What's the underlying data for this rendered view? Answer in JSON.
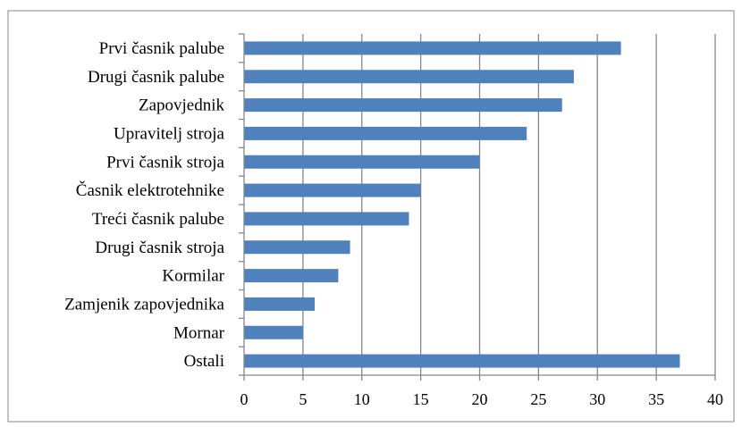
{
  "chart_data": {
    "type": "bar",
    "orientation": "horizontal",
    "title": "",
    "xlabel": "",
    "ylabel": "",
    "categories": [
      "Prvi časnik palube",
      "Drugi časnik palube",
      "Zapovjednik",
      "Upravitelj stroja",
      "Prvi časnik stroja",
      "Časnik elektrotehnike",
      "Treći časnik palube",
      "Drugi časnik stroja",
      "Kormilar",
      "Zamjenik zapovjednika",
      "Mornar",
      "Ostali"
    ],
    "values": [
      32,
      28,
      27,
      24,
      20,
      15,
      14,
      9,
      8,
      6,
      5,
      37
    ],
    "xlim": [
      0,
      40
    ],
    "xticks": [
      "0",
      "5",
      "10",
      "15",
      "20",
      "25",
      "30",
      "35",
      "40"
    ],
    "grid": "vertical",
    "legend": "none",
    "colors": {
      "bar": "#4F81BD",
      "grid": "#868686",
      "frame": "#868686"
    }
  }
}
